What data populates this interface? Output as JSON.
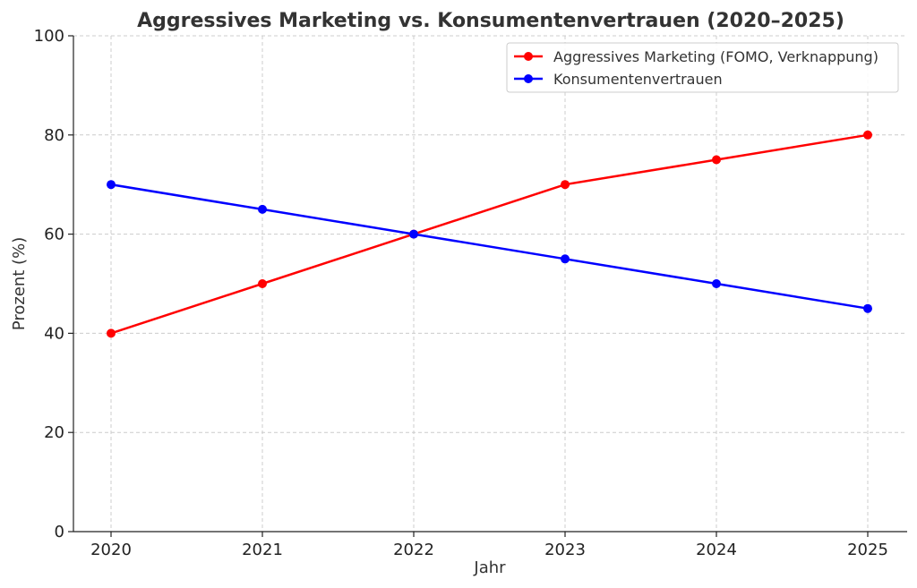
{
  "chart_data": {
    "type": "line",
    "title": "Aggressives Marketing vs. Konsumentenvertrauen (2020–2025)",
    "xlabel": "Jahr",
    "ylabel": "Prozent (%)",
    "x": [
      "2020",
      "2021",
      "2022",
      "2023",
      "2024",
      "2025"
    ],
    "ylim": [
      0,
      100
    ],
    "yticks": [
      "0",
      "20",
      "40",
      "60",
      "80",
      "100"
    ],
    "grid": true,
    "legend_position": "top-right",
    "series": [
      {
        "name": "Aggressives Marketing (FOMO, Verknappung)",
        "color": "#ff0000",
        "values": [
          40,
          50,
          60,
          70,
          75,
          80
        ]
      },
      {
        "name": "Konsumentenvertrauen",
        "color": "#0000ff",
        "values": [
          70,
          65,
          60,
          55,
          50,
          45
        ]
      }
    ]
  }
}
